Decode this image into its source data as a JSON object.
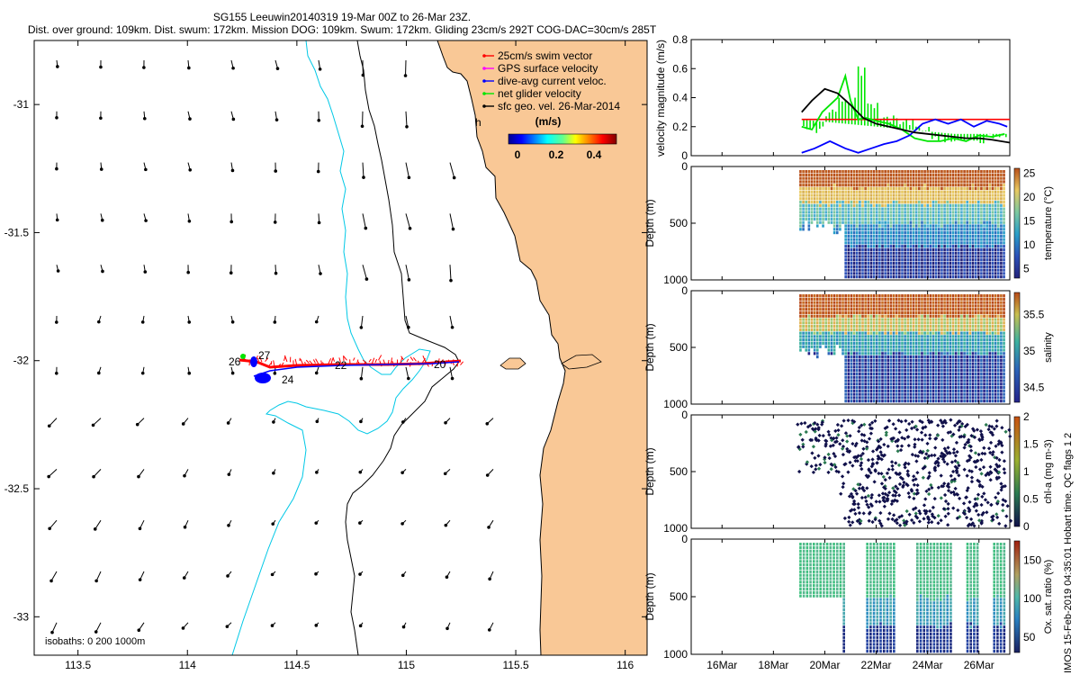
{
  "header": {
    "line1": "SG155 Leeuwin20140319 19-Mar 00Z to 26-Mar 23Z.",
    "line2": "Dist. over ground: 109km. Dist. swum: 172km. Mission DOG: 109km. Swum: 172km. Gliding 23cm/s 292T COG-DAC=30cm/s 285T"
  },
  "colors": {
    "land": "#f9c896",
    "swim_vector": "#ff0000",
    "gps_velocity": "#ff00ff",
    "dac_velocity": "#0000ff",
    "net_velocity": "#00e600",
    "geo_velocity": "#000000",
    "isobath_200": "#000000",
    "isobath_1000": "#00c8e6"
  },
  "map": {
    "legend": [
      {
        "label": "25cm/s swim vector",
        "color": "#ff0000"
      },
      {
        "label": "GPS surface velocity",
        "color": "#ff00ff"
      },
      {
        "label": "dive-avg current veloc.",
        "color": "#0000ff"
      },
      {
        "label": "net glider velocity",
        "color": "#00e600"
      },
      {
        "label": "sfc geo. vel. 26-Mar-2014",
        "color": "#000000"
      }
    ],
    "colorbar_label": "(m/s)",
    "colorbar_ticks": [
      "0",
      "0.2",
      "0.4"
    ],
    "x_ticks": [
      "113.5",
      "114",
      "114.5",
      "115",
      "115.5",
      "116"
    ],
    "y_ticks": [
      "-31",
      "-31.5",
      "-32",
      "-32.5",
      "-33"
    ],
    "isobath_note": "isobaths: 0   200  1000m",
    "track_labels": [
      "26",
      "27",
      "24",
      "22",
      "20"
    ],
    "track_label_suffix": "h"
  },
  "footer": {
    "x_ticks": [
      "16Mar",
      "18Mar",
      "20Mar",
      "22Mar",
      "24Mar",
      "26Mar"
    ],
    "imos_credit": "© IMOS 15-Feb-2019 04:35:01 Hobart time. QC flags 1  2"
  },
  "chart_data": [
    {
      "type": "line",
      "title": "",
      "ylabel": "velocity magnitude (m/s)",
      "ylim": [
        0,
        0.8
      ],
      "y_ticks": [
        "0",
        "0.2",
        "0.4",
        "0.6",
        "0.8"
      ],
      "x_range_days": [
        14.8,
        27.2
      ],
      "series": [
        {
          "name": "swim",
          "color": "#ff0000",
          "x": [
            19.1,
            27.2
          ],
          "y": [
            0.25,
            0.25
          ]
        },
        {
          "name": "net glider",
          "color": "#00e600",
          "x": [
            19.1,
            19.5,
            19.9,
            20.2,
            20.5,
            20.8,
            21.0,
            21.3,
            21.6,
            22.0,
            22.5,
            23.0,
            23.5,
            24.0,
            24.5,
            25.0,
            25.5,
            26.0,
            26.5,
            27.0
          ],
          "y": [
            0.2,
            0.18,
            0.3,
            0.35,
            0.4,
            0.55,
            0.38,
            0.25,
            0.26,
            0.24,
            0.22,
            0.18,
            0.12,
            0.1,
            0.1,
            0.12,
            0.1,
            0.14,
            0.13,
            0.15
          ]
        },
        {
          "name": "dive-avg current",
          "color": "#0000ff",
          "x": [
            19.1,
            19.6,
            20.2,
            20.8,
            21.3,
            21.8,
            22.3,
            22.8,
            23.3,
            23.8,
            24.3,
            24.8,
            25.3,
            25.8,
            26.3,
            26.8,
            27.1
          ],
          "y": [
            0.02,
            0.05,
            0.1,
            0.05,
            0.02,
            0.05,
            0.08,
            0.1,
            0.14,
            0.22,
            0.25,
            0.22,
            0.25,
            0.2,
            0.24,
            0.22,
            0.2
          ]
        },
        {
          "name": "sfc geo",
          "color": "#000000",
          "x": [
            19.1,
            19.5,
            20.0,
            20.5,
            21.0,
            21.5,
            22.0,
            22.5,
            23.0,
            23.5,
            24.0,
            24.5,
            25.0,
            25.5,
            26.0,
            26.5,
            27.2
          ],
          "y": [
            0.3,
            0.38,
            0.46,
            0.43,
            0.35,
            0.26,
            0.22,
            0.2,
            0.18,
            0.16,
            0.15,
            0.14,
            0.13,
            0.12,
            0.12,
            0.11,
            0.09
          ]
        }
      ]
    },
    {
      "type": "scatter",
      "ylabel": "Depth (m)",
      "y_ticks": [
        "0",
        "500",
        "1000"
      ],
      "colorbar_label": "temperature (°C)",
      "colorbar_ticks": [
        "5",
        "10",
        "15",
        "20",
        "25"
      ],
      "clim": [
        3,
        26
      ]
    },
    {
      "type": "scatter",
      "ylabel": "Depth (m)",
      "y_ticks": [
        "0",
        "500",
        "1000"
      ],
      "colorbar_label": "salinity",
      "colorbar_ticks": [
        "34.5",
        "35",
        "35.5"
      ],
      "clim": [
        34.3,
        35.8
      ]
    },
    {
      "type": "scatter",
      "ylabel": "Depth (m)",
      "y_ticks": [
        "0",
        "500",
        "1000"
      ],
      "colorbar_label": "chl-a (mg m-3)",
      "colorbar_ticks": [
        "0",
        "0.5",
        "1",
        "1.5",
        "2"
      ],
      "clim": [
        0,
        2
      ]
    },
    {
      "type": "scatter",
      "ylabel": "Depth (m)",
      "y_ticks": [
        "0",
        "500",
        "1000"
      ],
      "colorbar_label": "Ox. sat. ratio (%)",
      "colorbar_ticks": [
        "50",
        "100",
        "150"
      ],
      "clim": [
        30,
        175
      ]
    }
  ]
}
